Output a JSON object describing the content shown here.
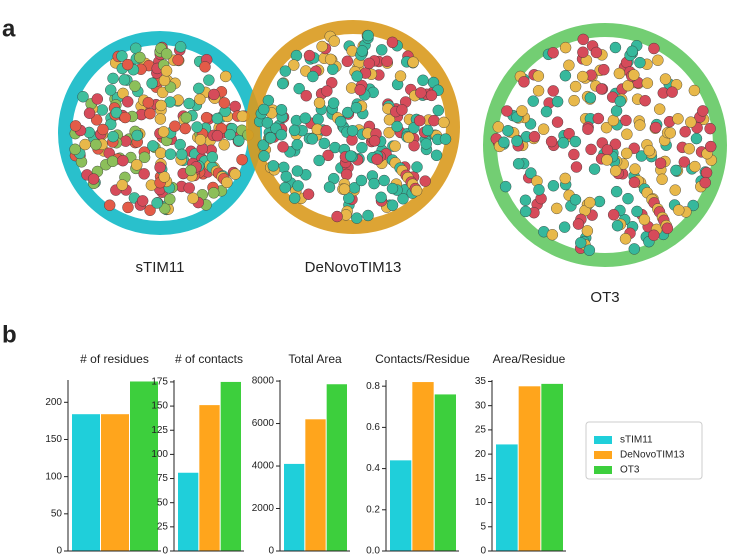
{
  "panel_labels": [
    "a",
    "b"
  ],
  "structures": [
    "sTIM11",
    "DeNovoTIM13",
    "OT3"
  ],
  "legend": [
    {
      "name": "sTIM11",
      "color": "#1fcfda"
    },
    {
      "name": "DeNovoTIM13",
      "color": "#ffa51c"
    },
    {
      "name": "OT3",
      "color": "#3dcf3d"
    }
  ],
  "chart_data": [
    {
      "type": "bar",
      "title": "# of residues",
      "values": [
        184,
        184,
        228
      ],
      "ylim": [
        0,
        230
      ],
      "yticks": [
        0,
        50,
        100,
        150,
        200
      ]
    },
    {
      "type": "bar",
      "title": "# of contacts",
      "values": [
        81,
        151,
        175
      ],
      "ylim": [
        0,
        177
      ],
      "yticks": [
        0,
        25,
        50,
        75,
        100,
        125,
        150,
        175
      ]
    },
    {
      "type": "bar",
      "title": "Total Area",
      "values": [
        4100,
        6200,
        7850
      ],
      "ylim": [
        0,
        8050
      ],
      "yticks": [
        0,
        2000,
        4000,
        6000,
        8000
      ]
    },
    {
      "type": "bar",
      "title": "Contacts/Residue",
      "values": [
        0.44,
        0.82,
        0.76
      ],
      "ylim": [
        0,
        0.83
      ],
      "yticks": [
        {
          "value": 0,
          "label": "0.0"
        },
        0.2,
        0.4,
        0.6,
        0.8
      ]
    },
    {
      "type": "bar",
      "title": "Area/Residue",
      "values": [
        22,
        34,
        34.5
      ],
      "ylim": [
        0,
        35.3
      ],
      "yticks": [
        0,
        5,
        10,
        15,
        20,
        25,
        30,
        35
      ]
    }
  ]
}
